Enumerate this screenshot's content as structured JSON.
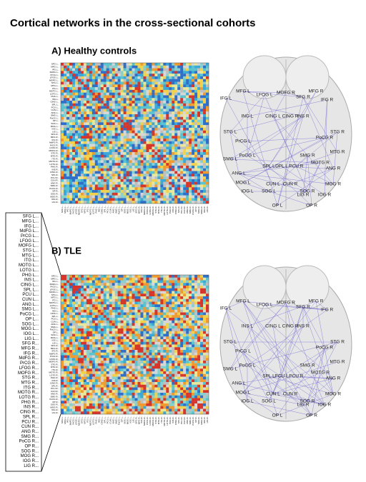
{
  "title": "Cortical networks in the cross-sectional cohorts",
  "panels": [
    {
      "label": "A) Healthy controls",
      "node_labels": [
        "MFG L",
        "MFG R",
        "IFG L",
        "IFG R",
        "LFOG L",
        "MOFG R",
        "SFG R",
        "ING L",
        "INS R",
        "CING L",
        "CING R",
        "STG L",
        "STG R",
        "PrCG L",
        "PoCG R",
        "PoCG L",
        "SMG L",
        "SMG R",
        "SPL L",
        "PCU R",
        "MTG R",
        "ANG L",
        "ANG R",
        "MOTG R",
        "DPL L",
        "MOG L",
        "CUN L",
        "CUN R",
        "SOG L",
        "SOG R",
        "IOG L",
        "IOG R",
        "OP L",
        "OP R",
        "LIG R",
        "MOG R"
      ]
    },
    {
      "label": "B) TLE",
      "node_labels": [
        "MFG L",
        "MFG R",
        "IFG L",
        "IFG R",
        "LFOG L",
        "MOFG R",
        "SFG R",
        "INS L",
        "INS R",
        "CING L",
        "CING R",
        "STG L",
        "STG R",
        "PrCG L",
        "PoCG R",
        "PoCG L",
        "SMG L",
        "SMG R",
        "SPL L",
        "PCU R",
        "MTG R",
        "ANG L",
        "ANG R",
        "MOTG R",
        "PCU L",
        "MOG L",
        "CUN L",
        "CUN R",
        "SOG L",
        "SOG R",
        "IOG L",
        "IOG R",
        "OP L",
        "OP R",
        "LIG R",
        "MOG R"
      ]
    }
  ],
  "regions": [
    "SFG L...",
    "MFG L...",
    "IFG L...",
    "MdFG L...",
    "PrCG L...",
    "LFOG L...",
    "MOFG L...",
    "STG L...",
    "MTG L...",
    "ITG L...",
    "MOTG L...",
    "LOTG L...",
    "PHG L...",
    "INS L...",
    "CING L...",
    "SPL L...",
    "PCU L...",
    "CUN L...",
    "ANG L...",
    "SMG L...",
    "PoCG L...",
    "OP L...",
    "SOG L...",
    "MOG L...",
    "IOG L...",
    "LIG L...",
    "SFG R...",
    "MFG R...",
    "IFG R...",
    "MdFG R...",
    "PrCG R...",
    "LFOG R...",
    "MOFG R...",
    "STG R...",
    "MTG R...",
    "ITG R...",
    "MOTG R...",
    "LOTG R...",
    "PHG R...",
    "INS R...",
    "CING R...",
    "SPL R...",
    "PCU R...",
    "CUN R...",
    "ANG R...",
    "SMG R...",
    "PoCG R...",
    "OP R...",
    "SOG R...",
    "MOG R...",
    "IOG R...",
    "LIG R..."
  ]
}
